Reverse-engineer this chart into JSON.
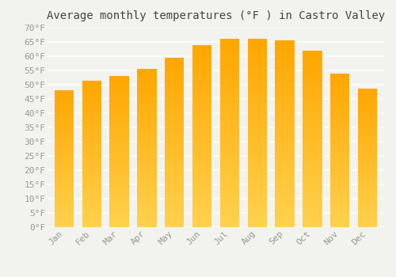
{
  "title": "Average monthly temperatures (°F ) in Castro Valley",
  "months": [
    "Jan",
    "Feb",
    "Mar",
    "Apr",
    "May",
    "Jun",
    "Jul",
    "Aug",
    "Sep",
    "Oct",
    "Nov",
    "Dec"
  ],
  "values": [
    48,
    51.5,
    53,
    55.5,
    59.5,
    64,
    66,
    66,
    65.5,
    62,
    54,
    48.5
  ],
  "bar_color": "#FFAA00",
  "bar_color_light": "#FFD070",
  "ylim": [
    0,
    70
  ],
  "yticks": [
    0,
    5,
    10,
    15,
    20,
    25,
    30,
    35,
    40,
    45,
    50,
    55,
    60,
    65,
    70
  ],
  "background_color": "#F2F2EE",
  "grid_color": "#FFFFFF",
  "tick_label_color": "#999999",
  "title_color": "#444444",
  "title_fontsize": 10,
  "tick_fontsize": 8
}
